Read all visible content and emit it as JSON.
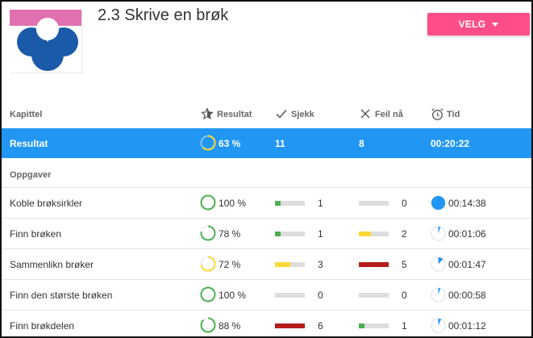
{
  "page": {
    "title": "2.3 Skrive en brøk"
  },
  "select_button": {
    "label": "VELG"
  },
  "header": {
    "chapter": "Kapittel",
    "result": "Resultat",
    "check": "Sjekk",
    "errors_now": "Feil nå",
    "time": "Tid"
  },
  "summary": {
    "label": "Resultat",
    "percent": "63 %",
    "percent_value": 63,
    "checks": "11",
    "errors": "8",
    "time": "00:20:22"
  },
  "section_label": "Oppgaver",
  "tasks": [
    {
      "name": "Koble brøksirkler",
      "percent": "100 %",
      "percent_value": 100,
      "ring_color": "#4caf50",
      "checks": "1",
      "check_fill": 0.18,
      "check_color": "#4caf50",
      "errors": "0",
      "error_fill": 0,
      "error_color": "#ddd",
      "time": "00:14:38",
      "time_fraction": 1.0
    },
    {
      "name": "Finn brøken",
      "percent": "78 %",
      "percent_value": 78,
      "ring_color": "#4caf50",
      "checks": "1",
      "check_fill": 0.18,
      "check_color": "#4caf50",
      "errors": "2",
      "error_fill": 0.4,
      "error_color": "#fdd835",
      "time": "00:01:06",
      "time_fraction": 0.05
    },
    {
      "name": "Sammenlikn brøker",
      "percent": "72 %",
      "percent_value": 72,
      "ring_color": "#fdd835",
      "checks": "3",
      "check_fill": 0.5,
      "check_color": "#fdd835",
      "errors": "5",
      "error_fill": 1.0,
      "error_color": "#b71c1c",
      "time": "00:01:47",
      "time_fraction": 0.12
    },
    {
      "name": "Finn den største brøken",
      "percent": "100 %",
      "percent_value": 100,
      "ring_color": "#4caf50",
      "checks": "0",
      "check_fill": 0,
      "check_color": "#ddd",
      "errors": "0",
      "error_fill": 0,
      "error_color": "#ddd",
      "time": "00:00:58",
      "time_fraction": 0.05
    },
    {
      "name": "Finn brøkdelen",
      "percent": "88 %",
      "percent_value": 88,
      "ring_color": "#4caf50",
      "checks": "6",
      "check_fill": 1.0,
      "check_color": "#b71c1c",
      "errors": "1",
      "error_fill": 0.18,
      "error_color": "#4caf50",
      "time": "00:01:12",
      "time_fraction": 0.07
    }
  ],
  "colors": {
    "accent": "#2196f3",
    "button": "#ff4d88",
    "summary_ring": "#fdd835"
  },
  "icons": {
    "result": "star-icon",
    "check": "check-icon",
    "errors": "x-icon",
    "time": "alarm-clock-icon"
  }
}
